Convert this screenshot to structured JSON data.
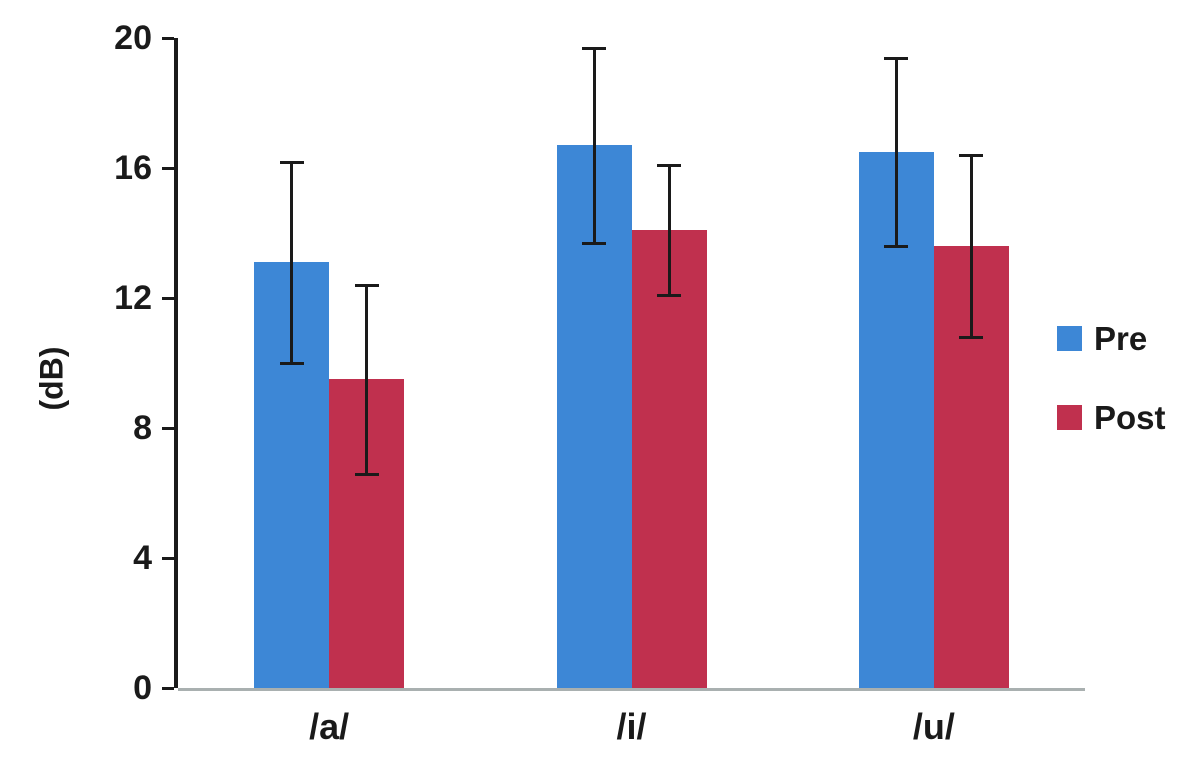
{
  "chart_data": {
    "type": "bar",
    "categories": [
      "/a/",
      "/i/",
      "/u/"
    ],
    "series": [
      {
        "name": "Pre",
        "color": "#3d87d6",
        "values": [
          13.1,
          16.7,
          16.5
        ],
        "errors": [
          3.1,
          3.0,
          2.9
        ]
      },
      {
        "name": "Post",
        "color": "#c0304e",
        "values": [
          9.5,
          14.1,
          13.6
        ],
        "errors": [
          2.9,
          2.0,
          2.8
        ]
      }
    ],
    "title": "",
    "xlabel": "",
    "ylabel": "(dB)",
    "ylim": [
      0,
      20
    ],
    "yticks": [
      0,
      4,
      8,
      12,
      16,
      20
    ],
    "grid": false,
    "legend_position": "right"
  }
}
